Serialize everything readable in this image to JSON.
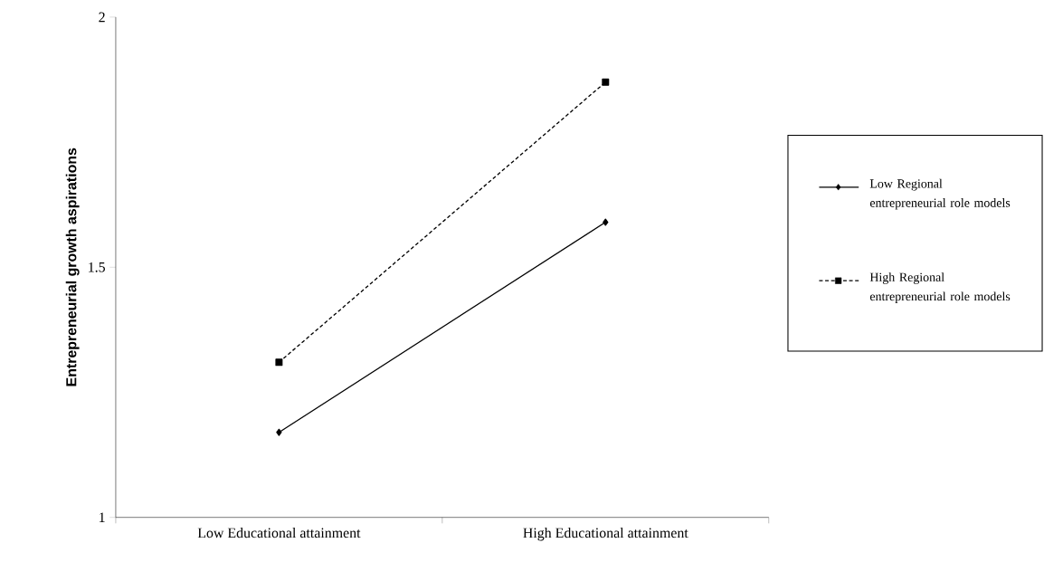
{
  "chart_data": {
    "type": "line",
    "ylabel": "Entrepreneurial growth aspirations",
    "categories": [
      "Low Educational attainment",
      "High Educational attainment"
    ],
    "series": [
      {
        "name": "Low Regional entrepreneurial role models",
        "color": "#000000",
        "values": [
          1.17,
          1.59
        ],
        "marker": "diamond",
        "line_style": "solid"
      },
      {
        "name": "High Regional entrepreneurial role models",
        "color": "#000000",
        "values": [
          1.31,
          1.87
        ],
        "marker": "square",
        "line_style": "dashed"
      }
    ],
    "ylim": [
      1,
      2
    ],
    "yticks": [
      1,
      1.5,
      2
    ],
    "grid": false,
    "legend": "right"
  }
}
